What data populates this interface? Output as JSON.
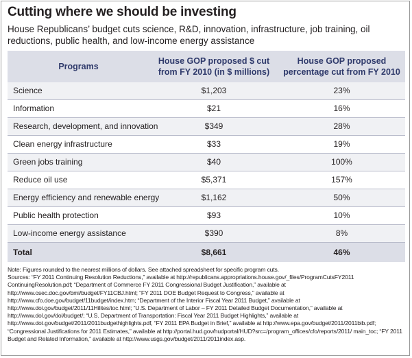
{
  "title": "Cutting where we should be investing",
  "subtitle": "House Republicans’ budget cuts science, R&D, innovation, infrastructure, job training, oil reductions, public health, and low-income energy assistance",
  "table": {
    "headers": {
      "programs": "Programs",
      "cut_dollars": "House GOP proposed $ cut from FY 2010 (in $ millions)",
      "cut_percent": "House GOP proposed percentage cut from FY 2010"
    },
    "rows": [
      {
        "program": "Science",
        "cut": "$1,203",
        "pct": "23%"
      },
      {
        "program": "Information",
        "cut": "$21",
        "pct": "16%"
      },
      {
        "program": "Research, development, and innovation",
        "cut": "$349",
        "pct": "28%"
      },
      {
        "program": "Clean energy infrastructure",
        "cut": "$33",
        "pct": "19%"
      },
      {
        "program": "Green jobs training",
        "cut": "$40",
        "pct": "100%"
      },
      {
        "program": "Reduce oil use",
        "cut": "$5,371",
        "pct": "157%"
      },
      {
        "program": "Energy efficiency and renewable energy",
        "cut": "$1,162",
        "pct": "50%"
      },
      {
        "program": "Public health protection",
        "cut": "$93",
        "pct": "10%"
      },
      {
        "program": "Low-income energy assistance",
        "cut": "$390",
        "pct": "8%"
      }
    ],
    "total": {
      "label": "Total",
      "cut": "$8,661",
      "pct": "46%"
    }
  },
  "notes": {
    "note": "Note: Figures rounded to the nearest millions of dollars. See attached spreadsheet for specific program cuts.",
    "sources": "Sources: “FY 2011 Continuing Resolution Reductions,” available at http://republicans.appropriations.house.gov/_files/ProgramCutsFY2011 ContinuingResolution.pdf; “Department of Commerce FY 2011 Congressional Budget Justification,” available at http://www.osec.doc.gov/bmi/budget/FY11CBJ.html; “FY 2011 DOE Budget Request to Congress,” available at http://www.cfo.doe.gov/budget/11budget/index.htm; “Department of the Interior Fiscal Year 2011 Budget,” available at http://www.doi.gov/budget/2011/11Hilites/toc.html; “U.S. Department of Labor – FY 2011 Detailed Budget Documentation,” available at http://www.dol.gov/dol/budget/; “U.S. Department of Transportation: Fiscal Year 2011 Budget Highlights,” available at http://www.dot.gov/budget/2011/2011budgethighlights.pdf, “FY 2011 EPA Budget in Brief,” available at http://www.epa.gov/budget/2011/2011bib.pdf; “Congressional Justifications for 2011 Estimates,” available at http://portal.hud.gov/hudportal/HUD?src=/program_offices/cfo/reports/2011/ main_toc; “FY 2011 Budget and Related Information,” available at http://www.usgs.gov/budget/2011/2011index.asp."
  }
}
